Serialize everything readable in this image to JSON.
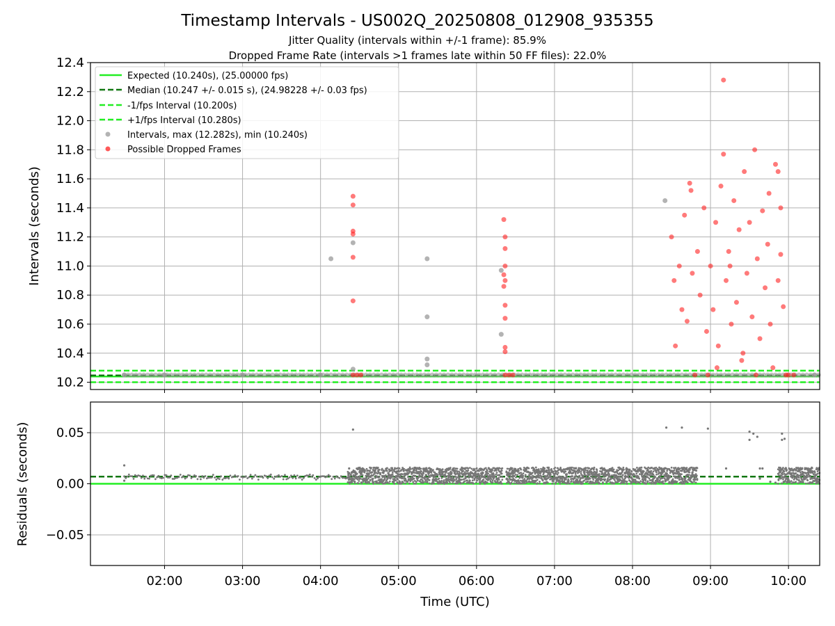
{
  "title": "Timestamp Intervals - US002Q_20250808_012908_935355",
  "subtitle_1": "Jitter Quality (intervals within +/-1 frame): 85.9%",
  "subtitle_2": "Dropped Frame Rate (intervals >1 frames late within 50 FF files): 22.0%",
  "colors": {
    "expected": "#22ee22",
    "median": "#117711",
    "interval_points": "#999999",
    "dropped_points": "#ff2222",
    "residual_points": "#777777",
    "grid": "#b0b0b0"
  },
  "chart_data": [
    {
      "type": "scatter",
      "title": "",
      "xlabel": "",
      "ylabel": "Intervals (seconds)",
      "xlim": [
        "01:03",
        "10:24"
      ],
      "ylim": [
        10.15,
        12.4
      ],
      "yticks": [
        "10.2",
        "10.4",
        "10.6",
        "10.8",
        "11.0",
        "11.2",
        "11.4",
        "11.6",
        "11.8",
        "12.0",
        "12.2",
        "12.4"
      ],
      "grid": true,
      "legend_placement": "upper-left",
      "reference_lines": [
        {
          "name": "Expected (10.240s), (25.00000 fps)",
          "y": 10.24,
          "style": "solid"
        },
        {
          "name": "Median (10.247 +/- 0.015 s), (24.98228 +/- 0.03 fps)",
          "y": 10.247,
          "style": "dashed"
        },
        {
          "name": "-1/fps Interval (10.200s)",
          "y": 10.2,
          "style": "dashed"
        },
        {
          "name": "+1/fps Interval (10.280s)",
          "y": 10.28,
          "style": "dashed"
        }
      ],
      "series": [
        {
          "name": "Intervals, max (12.282s), min (10.240s)",
          "points": [
            [
              "01:29",
              10.25
            ],
            [
              "02:00",
              10.25
            ],
            [
              "03:00",
              10.25
            ],
            [
              "04:00",
              10.25
            ],
            [
              "04:08",
              11.05
            ],
            [
              "04:25",
              11.16
            ],
            [
              "04:25",
              10.29
            ],
            [
              "05:22",
              11.05
            ],
            [
              "05:22",
              10.65
            ],
            [
              "05:22",
              10.36
            ],
            [
              "05:22",
              10.32
            ],
            [
              "06:19",
              10.97
            ],
            [
              "06:19",
              10.53
            ],
            [
              "08:25",
              11.45
            ],
            [
              "10:20",
              10.25
            ]
          ]
        },
        {
          "name": "Possible Dropped Frames",
          "points": [
            [
              "04:25",
              11.48
            ],
            [
              "04:25",
              11.42
            ],
            [
              "04:25",
              11.24
            ],
            [
              "04:25",
              11.22
            ],
            [
              "04:25",
              11.06
            ],
            [
              "04:25",
              10.76
            ],
            [
              "04:25",
              10.25
            ],
            [
              "04:28",
              10.25
            ],
            [
              "04:31",
              10.25
            ],
            [
              "06:21",
              11.32
            ],
            [
              "06:22",
              11.2
            ],
            [
              "06:22",
              11.12
            ],
            [
              "06:22",
              11.0
            ],
            [
              "06:21",
              10.94
            ],
            [
              "06:22",
              10.9
            ],
            [
              "06:21",
              10.86
            ],
            [
              "06:22",
              10.73
            ],
            [
              "06:22",
              10.64
            ],
            [
              "06:22",
              10.44
            ],
            [
              "06:22",
              10.41
            ],
            [
              "06:22",
              10.25
            ],
            [
              "06:25",
              10.25
            ],
            [
              "06:28",
              10.25
            ],
            [
              "08:30",
              11.2
            ],
            [
              "08:32",
              10.9
            ],
            [
              "08:36",
              11.0
            ],
            [
              "08:38",
              10.7
            ],
            [
              "08:40",
              11.35
            ],
            [
              "08:42",
              10.62
            ],
            [
              "08:45",
              11.52
            ],
            [
              "08:46",
              10.95
            ],
            [
              "08:48",
              10.25
            ],
            [
              "08:50",
              11.1
            ],
            [
              "08:52",
              10.8
            ],
            [
              "08:55",
              11.4
            ],
            [
              "08:57",
              10.55
            ],
            [
              "08:58",
              10.25
            ],
            [
              "09:00",
              11.0
            ],
            [
              "09:02",
              10.7
            ],
            [
              "09:04",
              11.3
            ],
            [
              "09:06",
              10.45
            ],
            [
              "09:08",
              11.55
            ],
            [
              "09:10",
              11.77
            ],
            [
              "09:10",
              12.28
            ],
            [
              "09:12",
              10.9
            ],
            [
              "09:14",
              11.1
            ],
            [
              "09:16",
              10.6
            ],
            [
              "09:18",
              11.45
            ],
            [
              "09:20",
              10.75
            ],
            [
              "09:22",
              11.25
            ],
            [
              "09:24",
              10.35
            ],
            [
              "09:26",
              11.65
            ],
            [
              "09:28",
              10.95
            ],
            [
              "09:30",
              11.3
            ],
            [
              "09:32",
              10.65
            ],
            [
              "09:34",
              11.8
            ],
            [
              "09:36",
              11.05
            ],
            [
              "09:38",
              10.5
            ],
            [
              "09:40",
              11.38
            ],
            [
              "09:42",
              10.85
            ],
            [
              "09:44",
              11.15
            ],
            [
              "09:46",
              10.6
            ],
            [
              "09:48",
              10.3
            ],
            [
              "09:50",
              11.7
            ],
            [
              "09:52",
              10.9
            ],
            [
              "09:54",
              11.08
            ],
            [
              "09:56",
              10.72
            ],
            [
              "09:58",
              10.25
            ],
            [
              "10:00",
              10.25
            ],
            [
              "10:04",
              10.25
            ],
            [
              "09:52",
              11.65
            ],
            [
              "09:54",
              11.4
            ],
            [
              "08:44",
              11.57
            ],
            [
              "08:33",
              10.45
            ],
            [
              "09:05",
              10.3
            ],
            [
              "09:15",
              11.0
            ],
            [
              "09:25",
              10.4
            ],
            [
              "09:35",
              10.25
            ],
            [
              "09:45",
              11.5
            ]
          ]
        }
      ]
    },
    {
      "type": "scatter",
      "title": "",
      "xlabel": "Time (UTC)",
      "ylabel": "Residuals (seconds)",
      "xlim": [
        "01:03",
        "10:24"
      ],
      "ylim": [
        -0.08,
        0.08
      ],
      "xticks": [
        "02:00",
        "03:00",
        "04:00",
        "05:00",
        "06:00",
        "07:00",
        "08:00",
        "09:00",
        "10:00"
      ],
      "yticks": [
        "0.05",
        "0.00",
        "−0.05"
      ],
      "grid": true,
      "reference_lines": [
        {
          "name": "Expected",
          "y": 0.0,
          "style": "solid"
        },
        {
          "name": "Median",
          "y": 0.007,
          "style": "dashed"
        }
      ],
      "series": [
        {
          "name": "Residuals",
          "bands": [
            {
              "from": "01:29",
              "to": "04:21",
              "low": 0.004,
              "high": 0.009
            },
            {
              "from": "04:21",
              "to": "04:25",
              "low": 0.0,
              "high": 0.012
            },
            {
              "from": "04:25",
              "to": "06:20",
              "low": 0.0,
              "high": 0.016
            },
            {
              "from": "06:23",
              "to": "08:40",
              "low": 0.0,
              "high": 0.016
            },
            {
              "from": "08:40",
              "to": "08:50",
              "low": 0.0,
              "high": 0.016
            },
            {
              "from": "09:52",
              "to": "10:24",
              "low": 0.0,
              "high": 0.016
            }
          ],
          "points": [
            [
              "01:29",
              0.018
            ],
            [
              "01:29",
              0.003
            ],
            [
              "04:22",
              0.015
            ],
            [
              "04:25",
              0.053
            ],
            [
              "08:26",
              0.055
            ],
            [
              "08:38",
              0.055
            ],
            [
              "08:58",
              0.054
            ],
            [
              "09:12",
              0.015
            ],
            [
              "09:30",
              0.051
            ],
            [
              "09:33",
              0.049
            ],
            [
              "09:30",
              0.043
            ],
            [
              "09:36",
              0.046
            ],
            [
              "09:38",
              0.015
            ],
            [
              "09:38",
              0.005
            ],
            [
              "09:40",
              0.015
            ],
            [
              "09:50",
              0.001
            ],
            [
              "09:55",
              0.049
            ],
            [
              "09:57",
              0.044
            ],
            [
              "09:55",
              0.043
            ],
            [
              "09:58",
              0.015
            ],
            [
              "09:46",
              0.002
            ]
          ]
        }
      ]
    }
  ]
}
